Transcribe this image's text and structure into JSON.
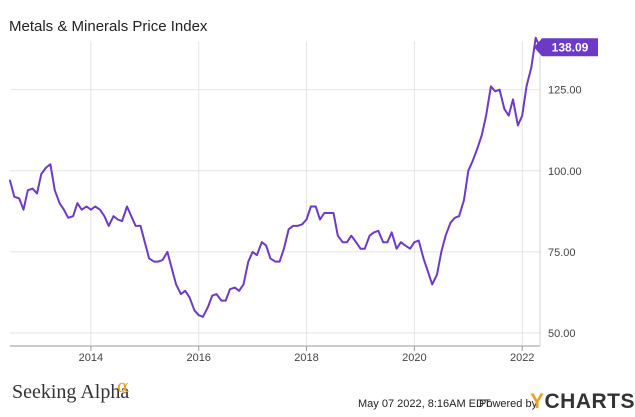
{
  "chart_data": {
    "type": "line",
    "title": "Metals & Minerals Price Index",
    "xlabel": "",
    "ylabel": "",
    "x_ticks": [
      "2014",
      "2016",
      "2018",
      "2020",
      "2022"
    ],
    "y_ticks": [
      "50.00",
      "75.00",
      "100.00",
      "125.00"
    ],
    "xlim": [
      2012.5,
      2022.33
    ],
    "ylim": [
      46,
      140
    ],
    "grid": true,
    "series": [
      {
        "color": "#6b3ac7",
        "last_value_label": "138.09",
        "x": [
          2012.5,
          2012.58,
          2012.67,
          2012.75,
          2012.83,
          2012.92,
          2013.0,
          2013.08,
          2013.17,
          2013.25,
          2013.33,
          2013.42,
          2013.5,
          2013.58,
          2013.67,
          2013.75,
          2013.83,
          2013.92,
          2014.0,
          2014.08,
          2014.17,
          2014.25,
          2014.33,
          2014.42,
          2014.5,
          2014.58,
          2014.67,
          2014.75,
          2014.83,
          2014.92,
          2015.0,
          2015.08,
          2015.17,
          2015.25,
          2015.33,
          2015.42,
          2015.5,
          2015.58,
          2015.67,
          2015.75,
          2015.83,
          2015.92,
          2016.0,
          2016.08,
          2016.17,
          2016.25,
          2016.33,
          2016.42,
          2016.5,
          2016.58,
          2016.67,
          2016.75,
          2016.83,
          2016.92,
          2017.0,
          2017.08,
          2017.17,
          2017.25,
          2017.33,
          2017.42,
          2017.5,
          2017.58,
          2017.67,
          2017.75,
          2017.83,
          2017.92,
          2018.0,
          2018.08,
          2018.17,
          2018.25,
          2018.33,
          2018.42,
          2018.5,
          2018.58,
          2018.67,
          2018.75,
          2018.83,
          2018.92,
          2019.0,
          2019.08,
          2019.17,
          2019.25,
          2019.33,
          2019.42,
          2019.5,
          2019.58,
          2019.67,
          2019.75,
          2019.83,
          2019.92,
          2020.0,
          2020.08,
          2020.17,
          2020.25,
          2020.33,
          2020.42,
          2020.5,
          2020.58,
          2020.67,
          2020.75,
          2020.83,
          2020.92,
          2021.0,
          2021.08,
          2021.17,
          2021.25,
          2021.33,
          2021.42,
          2021.5,
          2021.58,
          2021.67,
          2021.75,
          2021.83,
          2021.92,
          2022.0,
          2022.08,
          2022.17,
          2022.25,
          2022.33
        ],
        "y": [
          97,
          92,
          91.5,
          88,
          94,
          94.5,
          93,
          99,
          101,
          102,
          94,
          90,
          88,
          85.5,
          86,
          90,
          88,
          89,
          88,
          89,
          88,
          86,
          83,
          86,
          85,
          84.5,
          89,
          86,
          83,
          83,
          78,
          73,
          72,
          72,
          72.5,
          75,
          70,
          65,
          62,
          63,
          61,
          57,
          55.5,
          55,
          58,
          61.5,
          62,
          60,
          60,
          63.5,
          64,
          63,
          65,
          72,
          75,
          74,
          78,
          77,
          73,
          72,
          72,
          76,
          82,
          83,
          83,
          83.5,
          85,
          89,
          89,
          85,
          87,
          87,
          87,
          80,
          78,
          78,
          80,
          78,
          76,
          76,
          80,
          81,
          81.5,
          78,
          78,
          81,
          76,
          78,
          77,
          76,
          78,
          78.5,
          73,
          69,
          65,
          68,
          75,
          80,
          84,
          85.5,
          86,
          91,
          100,
          103,
          107,
          111,
          117,
          126,
          124.5,
          125,
          119,
          117,
          122,
          114,
          117,
          126,
          132,
          141,
          138.09
        ]
      }
    ]
  },
  "footer": {
    "brand": "Seeking Alpha",
    "brand_mark": "α",
    "timestamp": "May 07 2022, 8:16AM EDT.",
    "powered_by": "Powered by",
    "ycharts_y": "Y",
    "ycharts_rest": "CHARTS"
  }
}
